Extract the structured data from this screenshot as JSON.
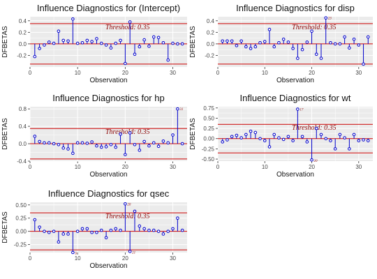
{
  "colors": {
    "panel_bg": "#ebebeb",
    "grid": "#ffffff",
    "stem": "#0000cc",
    "threshold_line": "#cc0000",
    "threshold_text": "#8b0000"
  },
  "chart_data": [
    {
      "type": "scatter",
      "title": "Influence Diagnostics for (Intercept)",
      "xlabel": "Observation",
      "ylabel": "DFBETAS",
      "threshold": 0.35,
      "threshold_label": "Threshold: 0.35",
      "xlim": [
        0,
        33
      ],
      "ylim": [
        -0.4,
        0.47
      ],
      "x_ticks": [
        0,
        10,
        20,
        30
      ],
      "y_ticks": [
        -0.2,
        0.0,
        0.2,
        0.4
      ],
      "x": [
        1,
        2,
        3,
        4,
        5,
        6,
        7,
        8,
        9,
        10,
        11,
        12,
        13,
        14,
        15,
        16,
        17,
        18,
        19,
        20,
        21,
        22,
        23,
        24,
        25,
        26,
        27,
        28,
        29,
        30,
        31,
        32
      ],
      "values": [
        -0.22,
        -0.08,
        -0.02,
        0.03,
        0.01,
        0.22,
        0.06,
        0.05,
        0.43,
        0.01,
        0.02,
        0.06,
        0.04,
        0.09,
        0.01,
        -0.02,
        -0.07,
        0.01,
        0.06,
        -0.34,
        0.38,
        -0.18,
        -0.05,
        0.07,
        -0.04,
        0.12,
        0.11,
        0.02,
        -0.28,
        0.01,
        0.0,
        0.0
      ],
      "outlier_labels": []
    },
    {
      "type": "scatter",
      "title": "Influence Diagnostics for disp",
      "xlabel": "Observation",
      "ylabel": "DFBETAS",
      "threshold": 0.35,
      "threshold_label": "Threshold: 0.35",
      "xlim": [
        0,
        33
      ],
      "ylim": [
        -0.4,
        0.47
      ],
      "x_ticks": [
        0,
        10,
        20,
        30
      ],
      "y_ticks": [
        -0.2,
        0.0,
        0.2,
        0.4
      ],
      "x": [
        1,
        2,
        3,
        4,
        5,
        6,
        7,
        8,
        9,
        10,
        11,
        12,
        13,
        14,
        15,
        16,
        17,
        18,
        19,
        20,
        21,
        22,
        23,
        24,
        25,
        26,
        27,
        28,
        29,
        30,
        31,
        32
      ],
      "values": [
        0.05,
        0.05,
        0.05,
        -0.03,
        0.05,
        -0.05,
        -0.08,
        -0.05,
        0.02,
        0.04,
        0.25,
        -0.05,
        0.02,
        0.08,
        0.03,
        -0.08,
        -0.25,
        -0.1,
        0.03,
        0.22,
        -0.18,
        -0.25,
        0.45,
        0.02,
        0.0,
        0.0,
        0.12,
        -0.07,
        0.08,
        -0.02,
        -0.35,
        0.12
      ],
      "outlier_labels": [
        {
          "x": 23,
          "label": "23"
        }
      ]
    },
    {
      "type": "scatter",
      "title": "Influence Diagnostics for hp",
      "xlabel": "Observation",
      "ylabel": "DFBETAS",
      "threshold": 0.35,
      "threshold_label": "Threshold: 0.35",
      "xlim": [
        0,
        33
      ],
      "ylim": [
        -0.4,
        0.85
      ],
      "x_ticks": [
        0,
        10,
        20,
        30
      ],
      "y_ticks": [
        -0.4,
        0.0,
        0.4,
        0.8
      ],
      "x": [
        1,
        2,
        3,
        4,
        5,
        6,
        7,
        8,
        9,
        10,
        11,
        12,
        13,
        14,
        15,
        16,
        17,
        18,
        19,
        20,
        21,
        22,
        23,
        24,
        25,
        26,
        27,
        28,
        29,
        30,
        31,
        32
      ],
      "values": [
        0.17,
        0.05,
        0.02,
        0.02,
        0.0,
        -0.02,
        -0.1,
        -0.12,
        -0.22,
        0.02,
        0.02,
        0.01,
        0.04,
        -0.05,
        -0.08,
        -0.07,
        -0.02,
        -0.08,
        0.22,
        -0.25,
        0.25,
        -0.02,
        -0.15,
        0.05,
        -0.05,
        0.02,
        -0.06,
        0.06,
        0.02,
        0.2,
        0.8,
        0.0
      ],
      "outlier_labels": [
        {
          "x": 31,
          "label": "31"
        }
      ]
    },
    {
      "type": "scatter",
      "title": "Influence Diagnostics for wt",
      "xlabel": "Observation",
      "ylabel": "DFBETAS",
      "threshold": 0.35,
      "threshold_label": "Threshold: 0.35",
      "xlim": [
        0,
        33
      ],
      "ylim": [
        -0.55,
        0.78
      ],
      "x_ticks": [
        0,
        10,
        20,
        30
      ],
      "y_ticks": [
        -0.5,
        -0.25,
        0.0,
        0.25,
        0.5,
        0.75
      ],
      "x": [
        1,
        2,
        3,
        4,
        5,
        6,
        7,
        8,
        9,
        10,
        11,
        12,
        13,
        14,
        15,
        16,
        17,
        18,
        19,
        20,
        21,
        22,
        23,
        24,
        25,
        26,
        27,
        28,
        29,
        30,
        31,
        32
      ],
      "values": [
        -0.08,
        -0.03,
        0.05,
        0.08,
        0.02,
        0.1,
        0.18,
        0.15,
        0.0,
        -0.05,
        -0.2,
        0.1,
        0.02,
        -0.02,
        0.05,
        -0.05,
        0.72,
        0.05,
        -0.08,
        -0.52,
        0.25,
        0.1,
        0.0,
        -0.05,
        -0.25,
        0.1,
        0.02,
        -0.25,
        0.1,
        -0.05,
        -0.03,
        -0.05
      ],
      "outlier_labels": [
        {
          "x": 17,
          "label": "17"
        },
        {
          "x": 20,
          "label": "20"
        }
      ]
    },
    {
      "type": "scatter",
      "title": "Influence Diagnostics for qsec",
      "xlabel": "Observation",
      "ylabel": "DFBETAS",
      "threshold": 0.35,
      "threshold_label": "Threshold: 0.35",
      "xlim": [
        0,
        33
      ],
      "ylim": [
        -0.4,
        0.55
      ],
      "x_ticks": [
        0,
        10,
        20,
        30
      ],
      "y_ticks": [
        -0.25,
        0.0,
        0.25,
        0.5
      ],
      "x": [
        1,
        2,
        3,
        4,
        5,
        6,
        7,
        8,
        9,
        10,
        11,
        12,
        13,
        14,
        15,
        16,
        17,
        18,
        19,
        20,
        21,
        22,
        23,
        24,
        25,
        26,
        27,
        28,
        29,
        30,
        31,
        32
      ],
      "values": [
        0.22,
        0.08,
        0.0,
        -0.02,
        0.0,
        -0.2,
        -0.05,
        -0.05,
        -0.4,
        0.0,
        0.05,
        0.05,
        -0.02,
        -0.02,
        0.02,
        -0.12,
        0.02,
        0.05,
        0.02,
        0.52,
        -0.38,
        0.38,
        0.1,
        0.05,
        0.02,
        0.02,
        0.0,
        -0.05,
        0.0,
        0.05,
        0.25,
        0.02
      ],
      "outlier_labels": [
        {
          "x": 9,
          "label": "9"
        },
        {
          "x": 20,
          "label": "20"
        },
        {
          "x": 21,
          "label": "21"
        }
      ]
    }
  ]
}
